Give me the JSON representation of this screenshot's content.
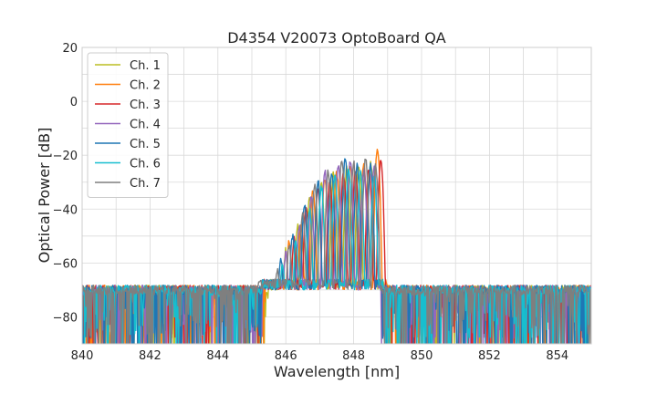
{
  "chart_data": {
    "type": "line",
    "title": "D4354 V20073 OptoBoard QA",
    "xlabel": "Wavelength [nm]",
    "ylabel": "Optical Power [dB]",
    "xlim": [
      840,
      855
    ],
    "ylim": [
      -90,
      20
    ],
    "xticks": [
      840,
      842,
      844,
      846,
      848,
      850,
      852,
      854
    ],
    "yticks": [
      -80,
      -60,
      -40,
      -20,
      0,
      20
    ],
    "xtick_labels": [
      "840",
      "842",
      "844",
      "846",
      "848",
      "850",
      "852",
      "854"
    ],
    "ytick_labels": [
      "−80",
      "−60",
      "−40",
      "−20",
      "0",
      "20"
    ],
    "grid": true,
    "legend_position": "top-left",
    "noise_floor": -70,
    "series": [
      {
        "name": "Ch. 1",
        "color": "#bcbd22",
        "band": [
          845.5,
          848.9
        ],
        "peaks": [
          [
            846.0,
            -55
          ],
          [
            846.35,
            -46
          ],
          [
            846.7,
            -36
          ],
          [
            847.05,
            -30
          ],
          [
            847.4,
            -27
          ],
          [
            847.8,
            -25
          ],
          [
            848.15,
            -24
          ],
          [
            848.5,
            -23
          ]
        ]
      },
      {
        "name": "Ch. 2",
        "color": "#ff7f0e",
        "band": [
          845.4,
          849.0
        ],
        "peaks": [
          [
            846.1,
            -52
          ],
          [
            846.45,
            -45
          ],
          [
            846.8,
            -33
          ],
          [
            847.15,
            -28
          ],
          [
            847.5,
            -26
          ],
          [
            847.9,
            -24
          ],
          [
            848.3,
            -23
          ],
          [
            848.7,
            -18
          ]
        ]
      },
      {
        "name": "Ch. 3",
        "color": "#d62728",
        "band": [
          845.3,
          849.0
        ],
        "peaks": [
          [
            845.9,
            -62
          ],
          [
            846.25,
            -51
          ],
          [
            846.6,
            -40
          ],
          [
            846.95,
            -33
          ],
          [
            847.3,
            -29
          ],
          [
            847.7,
            -27
          ],
          [
            848.05,
            -26
          ],
          [
            848.45,
            -25
          ],
          [
            848.8,
            -22
          ]
        ]
      },
      {
        "name": "Ch. 4",
        "color": "#9467bd",
        "band": [
          845.4,
          848.8
        ],
        "peaks": [
          [
            846.0,
            -56
          ],
          [
            846.4,
            -46
          ],
          [
            846.75,
            -35
          ],
          [
            847.15,
            -26
          ],
          [
            847.55,
            -24
          ],
          [
            847.9,
            -22
          ],
          [
            848.3,
            -25
          ],
          [
            848.6,
            -24
          ]
        ]
      },
      {
        "name": "Ch. 5",
        "color": "#1f77b4",
        "band": [
          845.3,
          848.8
        ],
        "peaks": [
          [
            845.85,
            -58
          ],
          [
            846.2,
            -50
          ],
          [
            846.55,
            -38
          ],
          [
            846.95,
            -30
          ],
          [
            847.35,
            -26
          ],
          [
            847.75,
            -22
          ],
          [
            848.1,
            -24
          ],
          [
            848.5,
            -24
          ]
        ]
      },
      {
        "name": "Ch. 6",
        "color": "#17becf",
        "band": [
          845.3,
          848.9
        ],
        "peaks": [
          [
            845.9,
            -60
          ],
          [
            846.3,
            -52
          ],
          [
            846.7,
            -40
          ],
          [
            847.05,
            -32
          ],
          [
            847.45,
            -28
          ],
          [
            847.85,
            -25
          ],
          [
            848.2,
            -26
          ],
          [
            848.6,
            -27
          ]
        ]
      },
      {
        "name": "Ch. 7",
        "color": "#7f7f7f",
        "band": [
          845.2,
          848.8
        ],
        "peaks": [
          [
            845.75,
            -62
          ],
          [
            846.1,
            -53
          ],
          [
            846.5,
            -41
          ],
          [
            846.85,
            -31
          ],
          [
            847.25,
            -26
          ],
          [
            847.65,
            -22
          ],
          [
            848.0,
            -23
          ],
          [
            848.35,
            -22
          ],
          [
            848.65,
            -24
          ]
        ]
      }
    ]
  }
}
